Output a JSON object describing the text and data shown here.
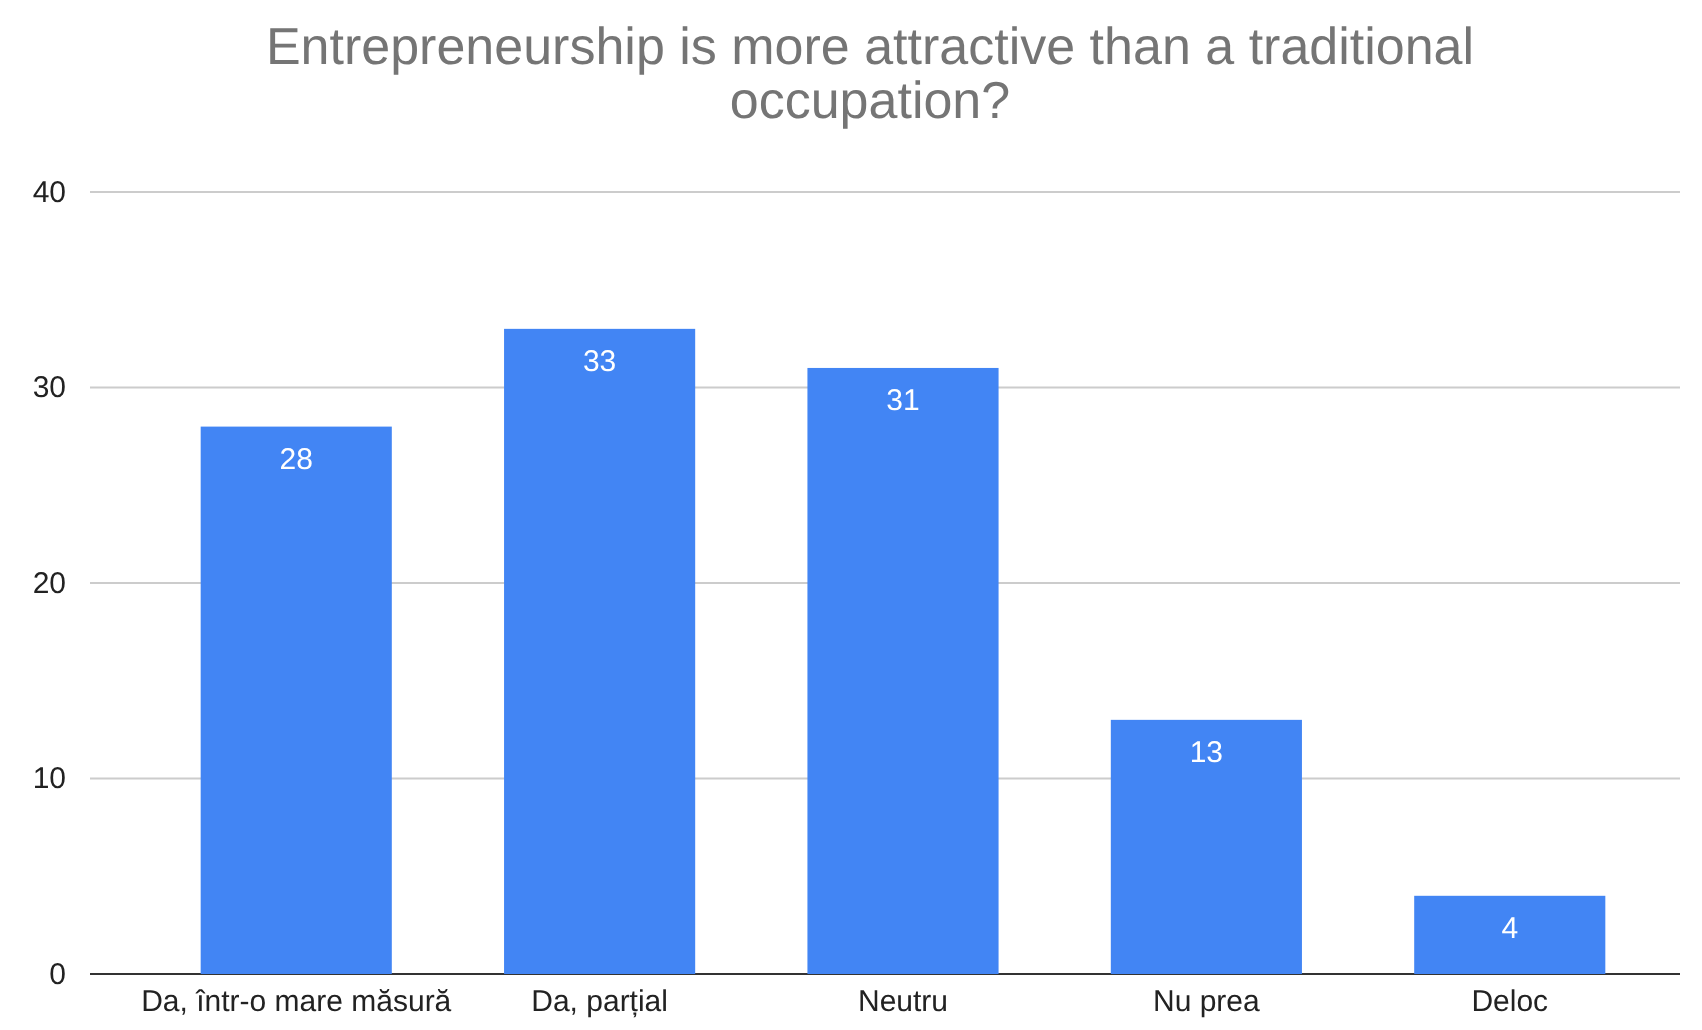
{
  "chart_data": {
    "type": "bar",
    "title": "Entrepreneurship is more attractive than a traditional occupation?",
    "categories": [
      "Da, într-o mare măsură",
      "Da, parțial",
      "Neutru",
      "Nu prea",
      "Deloc"
    ],
    "values": [
      28,
      33,
      31,
      13,
      4
    ],
    "color": "#4285f4",
    "ylim": [
      0,
      40
    ],
    "yticks": [
      0,
      10,
      20,
      30,
      40
    ],
    "grid": "y",
    "data_labels": true
  }
}
